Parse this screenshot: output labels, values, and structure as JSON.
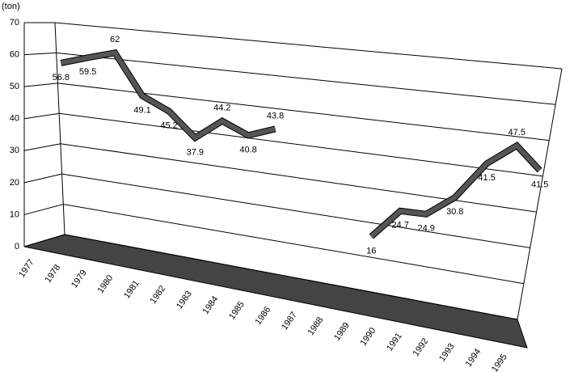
{
  "chart_data": {
    "type": "line",
    "y_label": "(ton)",
    "categories": [
      "1977",
      "1978",
      "1979",
      "1980",
      "1981",
      "1982",
      "1983",
      "1984",
      "1985",
      "1986",
      "1987",
      "1988",
      "1989",
      "1990",
      "1991",
      "1992",
      "1993",
      "1994",
      "1995"
    ],
    "series": [
      {
        "name": "ton",
        "color": "#555555",
        "values": [
          56.8,
          59.5,
          62,
          49.1,
          45.2,
          37.9,
          44.2,
          40.8,
          43.8,
          null,
          null,
          null,
          16,
          24.7,
          24.9,
          30.8,
          41.5,
          47.5,
          41.5
        ]
      }
    ],
    "ylim": [
      0,
      70
    ],
    "yticks": [
      0,
      10,
      20,
      30,
      40,
      50,
      60,
      70
    ],
    "grid": true
  }
}
